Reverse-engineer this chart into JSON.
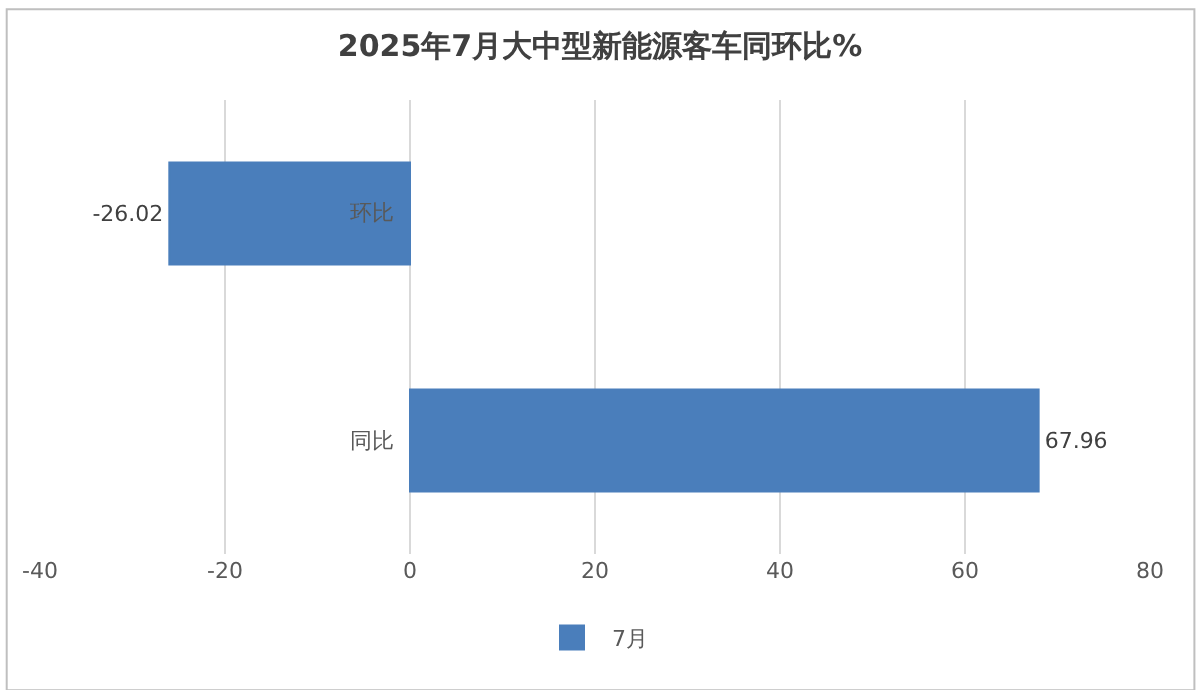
{
  "chart_data": {
    "type": "bar",
    "orientation": "horizontal",
    "title": "2025年7月大中型新能源客车同环比%",
    "categories": [
      "环比",
      "同比"
    ],
    "series": [
      {
        "name": "7月",
        "color": "#4a7ebb",
        "values": [
          -26.02,
          67.96
        ]
      }
    ],
    "xlim": [
      -40,
      80
    ],
    "xticks": [
      -40,
      -20,
      0,
      20,
      40,
      60,
      80
    ],
    "grid": "x",
    "legend": "bottom",
    "data_labels": true
  }
}
